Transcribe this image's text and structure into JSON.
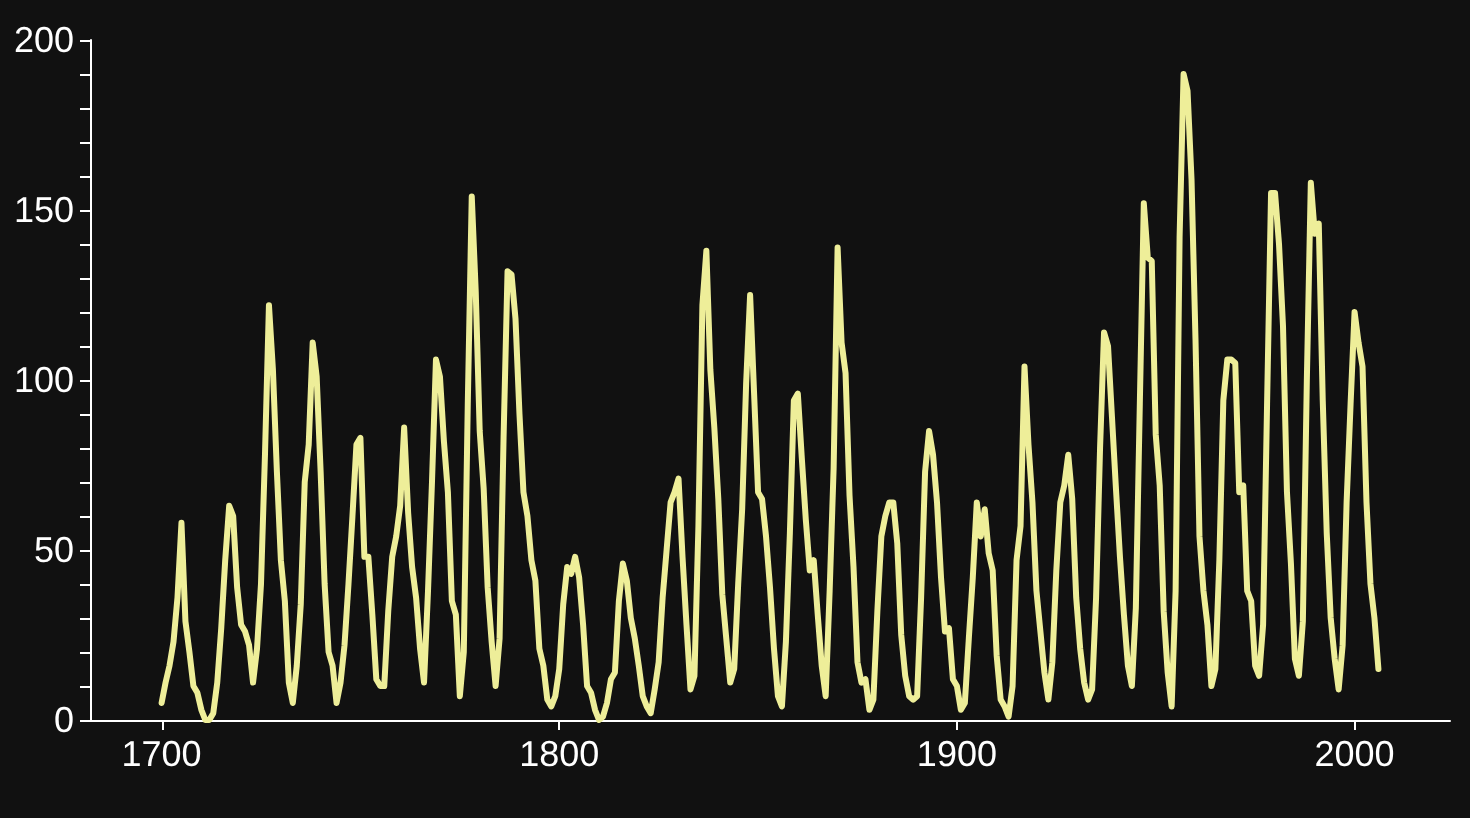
{
  "chart_data": {
    "type": "line",
    "x": [
      1700,
      1701,
      1702,
      1703,
      1704,
      1705,
      1706,
      1707,
      1708,
      1709,
      1710,
      1711,
      1712,
      1713,
      1714,
      1715,
      1716,
      1717,
      1718,
      1719,
      1720,
      1721,
      1722,
      1723,
      1724,
      1725,
      1726,
      1727,
      1728,
      1729,
      1730,
      1731,
      1732,
      1733,
      1734,
      1735,
      1736,
      1737,
      1738,
      1739,
      1740,
      1741,
      1742,
      1743,
      1744,
      1745,
      1746,
      1747,
      1748,
      1749,
      1750,
      1751,
      1752,
      1753,
      1754,
      1755,
      1756,
      1757,
      1758,
      1759,
      1760,
      1761,
      1762,
      1763,
      1764,
      1765,
      1766,
      1767,
      1768,
      1769,
      1770,
      1771,
      1772,
      1773,
      1774,
      1775,
      1776,
      1777,
      1778,
      1779,
      1780,
      1781,
      1782,
      1783,
      1784,
      1785,
      1786,
      1787,
      1788,
      1789,
      1790,
      1791,
      1792,
      1793,
      1794,
      1795,
      1796,
      1797,
      1798,
      1799,
      1800,
      1801,
      1802,
      1803,
      1804,
      1805,
      1806,
      1807,
      1808,
      1809,
      1810,
      1811,
      1812,
      1813,
      1814,
      1815,
      1816,
      1817,
      1818,
      1819,
      1820,
      1821,
      1822,
      1823,
      1824,
      1825,
      1826,
      1827,
      1828,
      1829,
      1830,
      1831,
      1832,
      1833,
      1834,
      1835,
      1836,
      1837,
      1838,
      1839,
      1840,
      1841,
      1842,
      1843,
      1844,
      1845,
      1846,
      1847,
      1848,
      1849,
      1850,
      1851,
      1852,
      1853,
      1854,
      1855,
      1856,
      1857,
      1858,
      1859,
      1860,
      1861,
      1862,
      1863,
      1864,
      1865,
      1866,
      1867,
      1868,
      1869,
      1870,
      1871,
      1872,
      1873,
      1874,
      1875,
      1876,
      1877,
      1878,
      1879,
      1880,
      1881,
      1882,
      1883,
      1884,
      1885,
      1886,
      1887,
      1888,
      1889,
      1890,
      1891,
      1892,
      1893,
      1894,
      1895,
      1896,
      1897,
      1898,
      1899,
      1900,
      1901,
      1902,
      1903,
      1904,
      1905,
      1906,
      1907,
      1908,
      1909,
      1910,
      1911,
      1912,
      1913,
      1914,
      1915,
      1916,
      1917,
      1918,
      1919,
      1920,
      1921,
      1922,
      1923,
      1924,
      1925,
      1926,
      1927,
      1928,
      1929,
      1930,
      1931,
      1932,
      1933,
      1934,
      1935,
      1936,
      1937,
      1938,
      1939,
      1940,
      1941,
      1942,
      1943,
      1944,
      1945,
      1946,
      1947,
      1948,
      1949,
      1950,
      1951,
      1952,
      1953,
      1954,
      1955,
      1956,
      1957,
      1958,
      1959,
      1960,
      1961,
      1962,
      1963,
      1964,
      1965,
      1966,
      1967,
      1968,
      1969,
      1970,
      1971,
      1972,
      1973,
      1974,
      1975,
      1976,
      1977,
      1978,
      1979,
      1980,
      1981,
      1982,
      1983,
      1984,
      1985,
      1986,
      1987,
      1988,
      1989,
      1990,
      1991,
      1992,
      1993,
      1994,
      1995,
      1996,
      1997,
      1998,
      1999,
      2000,
      2001,
      2002,
      2003,
      2004,
      2005,
      2006
    ],
    "series": [
      {
        "color": "#eeee99",
        "values": [
          5,
          11,
          16,
          23,
          36,
          58,
          29,
          20,
          10,
          8,
          3,
          0,
          0,
          2,
          11,
          27,
          47,
          63,
          60,
          39,
          28,
          26,
          22,
          11,
          21,
          40,
          78,
          122,
          103,
          73,
          47,
          35,
          11,
          5,
          16,
          34,
          70,
          81,
          111,
          101,
          73,
          40,
          20,
          16,
          5,
          11,
          22,
          40,
          60,
          81,
          83,
          48,
          48,
          31,
          12,
          10,
          10,
          32,
          48,
          54,
          63,
          86,
          61,
          45,
          36,
          21,
          11,
          38,
          70,
          106,
          101,
          82,
          67,
          35,
          31,
          7,
          20,
          93,
          154,
          126,
          85,
          68,
          39,
          23,
          10,
          24,
          83,
          132,
          131,
          118,
          90,
          67,
          60,
          47,
          41,
          21,
          16,
          6,
          4,
          7,
          15,
          34,
          45,
          43,
          48,
          42,
          28,
          10,
          8,
          3,
          0,
          1,
          5,
          12,
          14,
          35,
          46,
          41,
          30,
          24,
          16,
          7,
          4,
          2,
          9,
          17,
          36,
          50,
          64,
          67,
          71,
          48,
          28,
          9,
          13,
          57,
          122,
          138,
          103,
          86,
          65,
          37,
          24,
          11,
          15,
          40,
          62,
          99,
          125,
          96,
          67,
          65,
          54,
          39,
          21,
          7,
          4,
          23,
          55,
          94,
          96,
          77,
          59,
          44,
          47,
          31,
          16,
          7,
          38,
          74,
          139,
          111,
          102,
          66,
          45,
          17,
          11,
          12,
          3,
          6,
          32,
          54,
          60,
          64,
          64,
          52,
          25,
          13,
          7,
          6,
          7,
          36,
          73,
          85,
          78,
          64,
          42,
          26,
          27,
          12,
          10,
          3,
          5,
          24,
          42,
          64,
          54,
          62,
          49,
          44,
          19,
          6,
          4,
          1,
          10,
          47,
          57,
          104,
          81,
          64,
          38,
          26,
          14,
          6,
          17,
          44,
          64,
          69,
          78,
          65,
          36,
          21,
          11,
          6,
          9,
          36,
          80,
          114,
          110,
          89,
          68,
          48,
          31,
          16,
          10,
          33,
          93,
          152,
          136,
          135,
          84,
          69,
          32,
          14,
          4,
          38,
          142,
          190,
          185,
          159,
          112,
          54,
          38,
          28,
          10,
          15,
          47,
          94,
          106,
          106,
          105,
          67,
          69,
          38,
          35,
          16,
          13,
          28,
          93,
          155,
          155,
          140,
          116,
          67,
          46,
          18,
          13,
          29,
          100,
          158,
          143,
          146,
          94,
          55,
          30,
          18,
          9,
          22,
          64,
          93,
          120,
          111,
          104,
          64,
          40,
          30,
          15
        ]
      }
    ],
    "xlim": [
      1682,
      2024
    ],
    "xticks": [
      1700,
      1800,
      1900,
      2000
    ],
    "ylim": [
      0,
      200
    ],
    "yticks": [
      0,
      {
        "value": 10,
        "label": null
      },
      {
        "value": 20,
        "label": null
      },
      {
        "value": 30,
        "label": null
      },
      {
        "value": 40,
        "label": null
      },
      50,
      {
        "value": 60,
        "label": null
      },
      {
        "value": 70,
        "label": null
      },
      {
        "value": 80,
        "label": null
      },
      {
        "value": 90,
        "label": null
      },
      100,
      {
        "value": 110,
        "label": null
      },
      {
        "value": 120,
        "label": null
      },
      {
        "value": 130,
        "label": null
      },
      {
        "value": 140,
        "label": null
      },
      150,
      {
        "value": 160,
        "label": null
      },
      {
        "value": 170,
        "label": null
      },
      {
        "value": 180,
        "label": null
      },
      {
        "value": 190,
        "label": null
      },
      200
    ],
    "grid": false,
    "marker": "none",
    "line_style": "solid"
  }
}
